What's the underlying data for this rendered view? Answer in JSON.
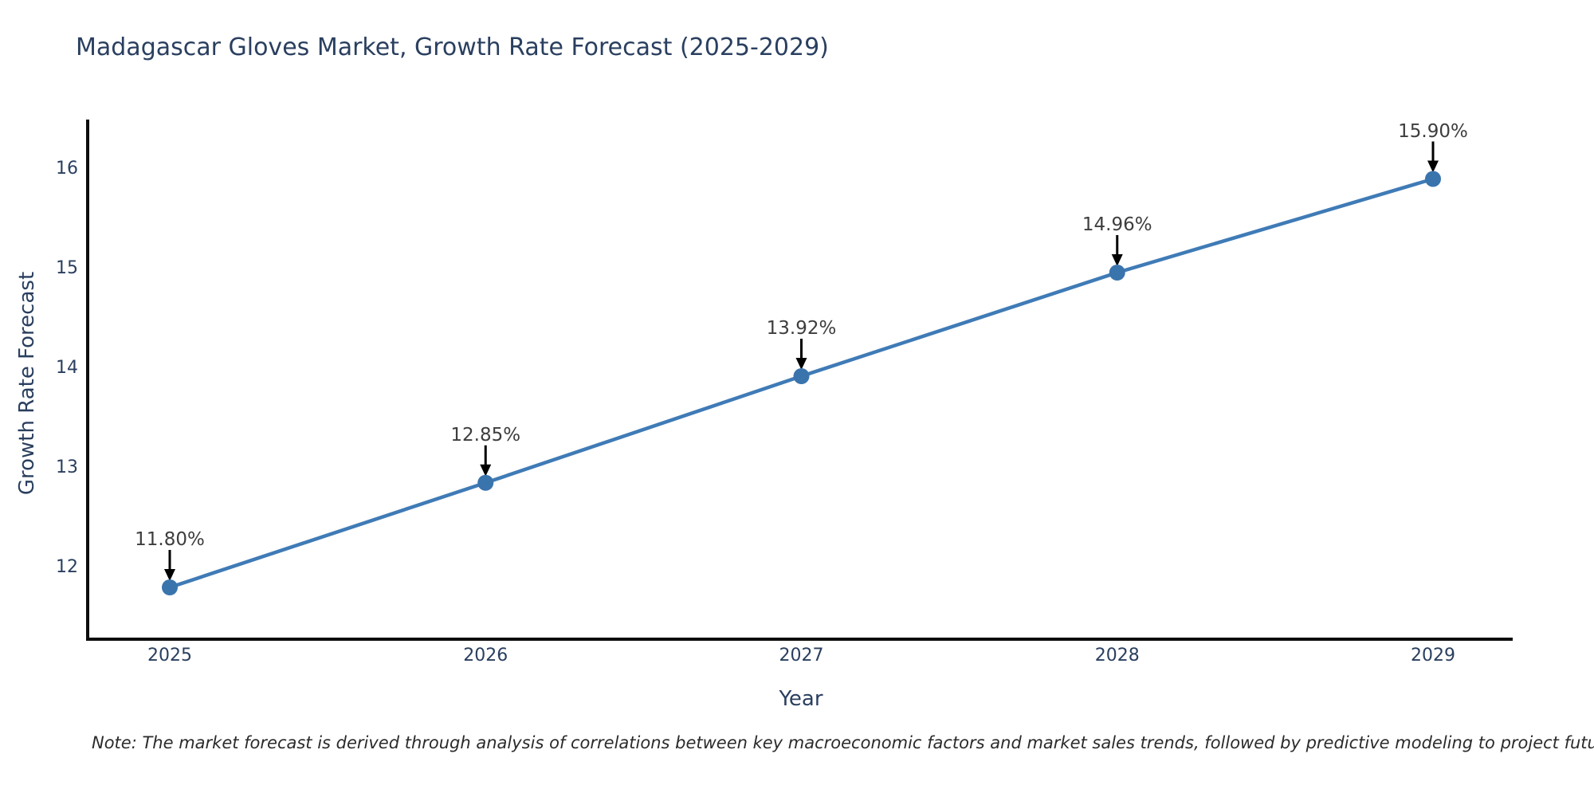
{
  "title": "Madagascar Gloves Market, Growth Rate Forecast (2025-2029)",
  "note": "Note: The market forecast is derived through analysis of correlations between key macroeconomic factors and market sales trends, followed by predictive modeling to project future sales",
  "chart_data": {
    "type": "line",
    "title": "Madagascar Gloves Market, Growth Rate Forecast (2025-2029)",
    "xlabel": "Year",
    "ylabel": "Growth Rate Forecast",
    "x": [
      2025,
      2026,
      2027,
      2028,
      2029
    ],
    "values": [
      11.8,
      12.85,
      13.92,
      14.96,
      15.9
    ],
    "point_labels": [
      "11.80%",
      "12.85%",
      "13.92%",
      "14.96%",
      "15.90%"
    ],
    "yticks": [
      12,
      13,
      14,
      15,
      16
    ],
    "ylim": [
      11.28,
      16.5
    ],
    "grid": false,
    "legend": "none",
    "line_color": "#3f7bb6",
    "marker_color": "#3a74ad",
    "arrow_color": "#000000",
    "axis_color": "#0d0d0d"
  }
}
